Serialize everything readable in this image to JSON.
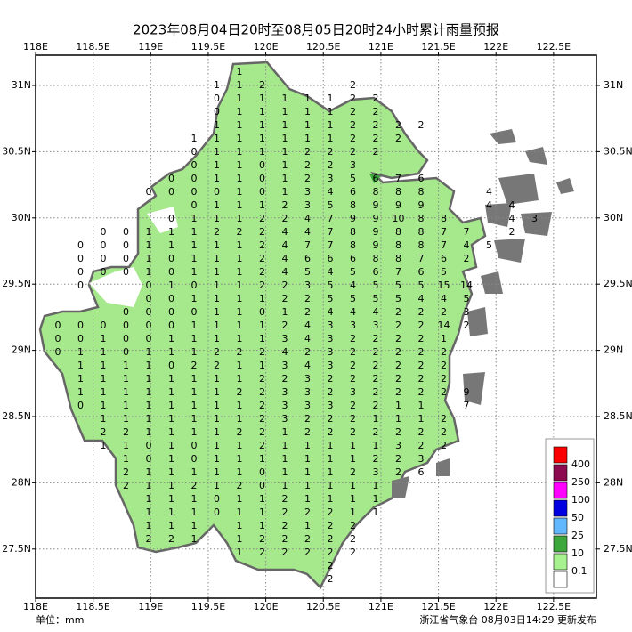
{
  "title": "2023年08月04日20时至08月05日20时24小时累计雨量预报",
  "lon_ticks": [
    {
      "value": 118,
      "label": "118E"
    },
    {
      "value": 118.5,
      "label": "118.5E"
    },
    {
      "value": 119,
      "label": "119E"
    },
    {
      "value": 119.5,
      "label": "119.5E"
    },
    {
      "value": 120,
      "label": "120E"
    },
    {
      "value": 120.5,
      "label": "120.5E"
    },
    {
      "value": 121,
      "label": "121E"
    },
    {
      "value": 121.5,
      "label": "121.5E"
    },
    {
      "value": 122,
      "label": "122E"
    },
    {
      "value": 122.5,
      "label": "122.5E"
    }
  ],
  "lat_ticks": [
    {
      "value": 31,
      "label": "31N"
    },
    {
      "value": 30.5,
      "label": "30.5N"
    },
    {
      "value": 30,
      "label": "30N"
    },
    {
      "value": 29.5,
      "label": "29.5N"
    },
    {
      "value": 29,
      "label": "29N"
    },
    {
      "value": 28.5,
      "label": "28.5N"
    },
    {
      "value": 28,
      "label": "28N"
    },
    {
      "value": 27.5,
      "label": "27.5N"
    }
  ],
  "legend": {
    "colors": [
      "#fa0000",
      "#8b0a50",
      "#ff00ff",
      "#0000e0",
      "#61b8ff",
      "#3ca83c",
      "#a6f28f",
      "#ffffff"
    ],
    "thresholds": [
      400,
      250,
      100,
      50,
      25,
      10,
      0.1
    ]
  },
  "unit": "单位：mm",
  "issuer": "浙江省气象台 08月03日14:29 更新发布",
  "rainfall_grid": [
    [
      null,
      null,
      null,
      null,
      null,
      null,
      null,
      null,
      1
    ],
    [
      null,
      null,
      null,
      null,
      null,
      null,
      null,
      1,
      1,
      2,
      null,
      null,
      null,
      2
    ],
    [
      null,
      null,
      null,
      null,
      null,
      null,
      null,
      0,
      1,
      1,
      1,
      1,
      1,
      2,
      2
    ],
    [
      null,
      null,
      null,
      null,
      null,
      null,
      null,
      0,
      1,
      1,
      1,
      1,
      1,
      2,
      2
    ],
    [
      null,
      null,
      null,
      null,
      null,
      null,
      null,
      1,
      1,
      1,
      1,
      1,
      1,
      2,
      2,
      2,
      2
    ],
    [
      null,
      null,
      null,
      null,
      null,
      null,
      1,
      1,
      1,
      1,
      1,
      1,
      1,
      2,
      2,
      2
    ],
    [
      null,
      null,
      null,
      null,
      null,
      null,
      0,
      1,
      1,
      1,
      1,
      2,
      2,
      2,
      2
    ],
    [
      null,
      null,
      null,
      null,
      null,
      null,
      0,
      1,
      1,
      0,
      1,
      2,
      2,
      3
    ],
    [
      null,
      null,
      null,
      null,
      null,
      0,
      0,
      1,
      1,
      0,
      1,
      2,
      3,
      5,
      6,
      7,
      6
    ],
    [
      null,
      null,
      null,
      null,
      0,
      0,
      0,
      0,
      1,
      0,
      1,
      3,
      4,
      6,
      8,
      8,
      8,
      null,
      null,
      4
    ],
    [
      null,
      null,
      null,
      null,
      null,
      null,
      0,
      1,
      1,
      1,
      2,
      3,
      5,
      8,
      9,
      9,
      9,
      null,
      null,
      4,
      4
    ],
    [
      null,
      null,
      null,
      null,
      null,
      0,
      1,
      1,
      1,
      2,
      2,
      4,
      7,
      9,
      9,
      10,
      8,
      8,
      null,
      null,
      4,
      3
    ],
    [
      null,
      null,
      0,
      0,
      1,
      1,
      1,
      2,
      2,
      2,
      4,
      4,
      7,
      8,
      9,
      8,
      8,
      7,
      7,
      null,
      2
    ],
    [
      null,
      0,
      0,
      0,
      1,
      1,
      1,
      1,
      1,
      2,
      4,
      7,
      7,
      8,
      9,
      8,
      8,
      7,
      4,
      5
    ],
    [
      null,
      0,
      0,
      0,
      1,
      0,
      1,
      1,
      1,
      2,
      4,
      6,
      6,
      6,
      8,
      8,
      7,
      6,
      2
    ],
    [
      null,
      0,
      0,
      0,
      1,
      0,
      1,
      1,
      1,
      2,
      4,
      5,
      4,
      5,
      6,
      7,
      6,
      5
    ],
    [
      null,
      0,
      null,
      null,
      0,
      1,
      0,
      1,
      1,
      2,
      2,
      3,
      5,
      4,
      5,
      5,
      5,
      15,
      14
    ],
    [
      null,
      null,
      null,
      null,
      0,
      0,
      1,
      1,
      1,
      1,
      2,
      2,
      5,
      5,
      5,
      5,
      4,
      4,
      5
    ],
    [
      null,
      null,
      null,
      0,
      0,
      0,
      0,
      1,
      1,
      0,
      1,
      2,
      4,
      4,
      4,
      2,
      2,
      2,
      3
    ],
    [
      0,
      0,
      0,
      0,
      0,
      0,
      1,
      1,
      1,
      1,
      2,
      4,
      3,
      3,
      3,
      2,
      2,
      14,
      2
    ],
    [
      0,
      0,
      1,
      0,
      0,
      1,
      1,
      1,
      1,
      1,
      3,
      4,
      3,
      2,
      2,
      2,
      2,
      1
    ],
    [
      0,
      1,
      1,
      0,
      1,
      1,
      1,
      2,
      2,
      2,
      4,
      2,
      3,
      2,
      2,
      2,
      2,
      2
    ],
    [
      null,
      1,
      1,
      1,
      1,
      0,
      2,
      2,
      1,
      1,
      3,
      4,
      3,
      2,
      2,
      2,
      2,
      2
    ],
    [
      null,
      1,
      1,
      1,
      1,
      1,
      1,
      1,
      1,
      2,
      2,
      3,
      2,
      2,
      2,
      2,
      2,
      2
    ],
    [
      null,
      1,
      1,
      1,
      1,
      1,
      1,
      1,
      2,
      2,
      3,
      3,
      2,
      3,
      2,
      2,
      2,
      2,
      9
    ],
    [
      null,
      0,
      1,
      1,
      1,
      1,
      1,
      1,
      1,
      2,
      3,
      3,
      3,
      2,
      2,
      1,
      1,
      null,
      7
    ],
    [
      null,
      null,
      1,
      1,
      1,
      1,
      1,
      1,
      1,
      2,
      3,
      2,
      2,
      2,
      1,
      1,
      1,
      2
    ],
    [
      null,
      null,
      2,
      2,
      1,
      1,
      1,
      1,
      2,
      2,
      1,
      2,
      2,
      2,
      2,
      2,
      2,
      2
    ],
    [
      null,
      null,
      1,
      1,
      0,
      1,
      0,
      1,
      1,
      2,
      1,
      1,
      1,
      1,
      1,
      3,
      2,
      2
    ],
    [
      null,
      null,
      null,
      1,
      0,
      1,
      0,
      1,
      1,
      1,
      1,
      1,
      1,
      1,
      2,
      2,
      3
    ],
    [
      null,
      null,
      null,
      2,
      1,
      1,
      1,
      1,
      1,
      0,
      1,
      1,
      1,
      2,
      3,
      2,
      6
    ],
    [
      null,
      null,
      null,
      2,
      1,
      1,
      2,
      1,
      2,
      0,
      1,
      1,
      1,
      1,
      1
    ],
    [
      null,
      null,
      null,
      null,
      1,
      1,
      1,
      0,
      1,
      1,
      2,
      1,
      1,
      1,
      1
    ],
    [
      null,
      null,
      null,
      null,
      1,
      1,
      1,
      0,
      1,
      1,
      2,
      2,
      2,
      1,
      1
    ],
    [
      null,
      null,
      null,
      null,
      1,
      1,
      1,
      null,
      1,
      1,
      2,
      1,
      2,
      2
    ],
    [
      null,
      null,
      null,
      null,
      2,
      2,
      1,
      null,
      1,
      2,
      2,
      2,
      2,
      2
    ],
    [
      null,
      null,
      null,
      null,
      null,
      null,
      null,
      null,
      1,
      2,
      2,
      2,
      2,
      2
    ],
    [
      null,
      null,
      null,
      null,
      null,
      null,
      null,
      null,
      null,
      null,
      null,
      null,
      2
    ],
    [
      null,
      null,
      null,
      null,
      null,
      null,
      null,
      null,
      null,
      null,
      null,
      null,
      2
    ]
  ]
}
